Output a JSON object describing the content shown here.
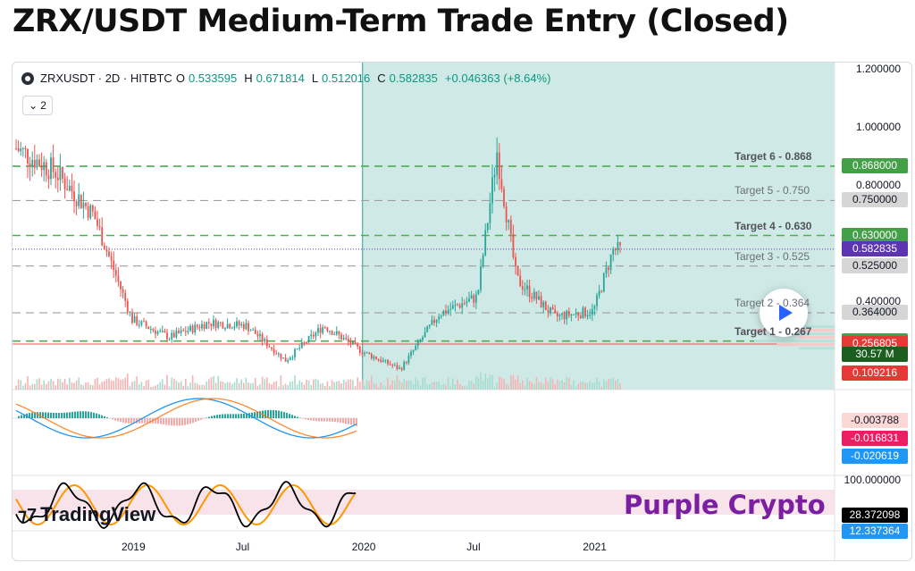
{
  "title": "ZRX/USDT Medium-Term Trade Entry (Closed)",
  "header": {
    "symbol": "ZRXUSDT · 2D · HITBTC",
    "o_label": "O",
    "o_value": "0.533595",
    "h_label": "H",
    "h_value": "0.671814",
    "l_label": "L",
    "l_value": "0.512016",
    "c_label": "C",
    "c_value": "0.582835",
    "change": "+0.046363 (+8.64%)",
    "toggle_label": "2",
    "toggle_icon": "chevron-down-icon"
  },
  "watermarks": {
    "tradingview": "TradingView",
    "brand": "Purple Crypto"
  },
  "colors": {
    "up": "#26a69a",
    "down": "#ef5350",
    "shade": "#cfeae6",
    "target_green": "#4caf50",
    "target_gray": "#9e9e9e",
    "brand_purple": "#7b1fa2",
    "last_price": "#5e35b1"
  },
  "chart_data": [
    {
      "type": "candlestick",
      "title": "",
      "price_axis_ticks": [
        "1.200000",
        "1.000000",
        "0.800000",
        "0.400000"
      ],
      "time_axis_ticks": [
        "2019",
        "Jul",
        "2020",
        "Jul",
        "2021"
      ],
      "ylim": [
        0.1,
        1.2
      ],
      "ohlc_last": {
        "open": 0.533595,
        "high": 0.671814,
        "low": 0.512016,
        "close": 0.582835
      },
      "approx_close_path": {
        "x": [
          "2018-07",
          "2018-09",
          "2018-11",
          "2019-01",
          "2019-03",
          "2019-05",
          "2019-07",
          "2019-09",
          "2019-11",
          "2020-01",
          "2020-03",
          "2020-05",
          "2020-07",
          "2020-08",
          "2020-09",
          "2020-11",
          "2021-01",
          "2021-02"
        ],
        "y": [
          0.93,
          0.85,
          0.7,
          0.34,
          0.28,
          0.33,
          0.32,
          0.2,
          0.32,
          0.23,
          0.17,
          0.36,
          0.42,
          0.92,
          0.48,
          0.35,
          0.37,
          0.58
        ]
      },
      "shaded_range": {
        "from": "2020-01",
        "to": "2021-02"
      },
      "target_lines": [
        {
          "label": "Target 6 - 0.868",
          "value": 0.868,
          "tag": "0.868000",
          "style": "green"
        },
        {
          "label": "Target 5 - 0.750",
          "value": 0.75,
          "tag": "0.750000",
          "style": "gray"
        },
        {
          "label": "Target 4 - 0.630",
          "value": 0.63,
          "tag": "0.630000",
          "style": "green"
        },
        {
          "label": "Target 3 - 0.525",
          "value": 0.525,
          "tag": "0.525000",
          "style": "gray"
        },
        {
          "label": "Target 2 - 0.364",
          "value": 0.364,
          "tag": "0.364000",
          "style": "gray"
        },
        {
          "label": "Target 1 - 0.267",
          "value": 0.267,
          "tag": "0.267000",
          "style": "green"
        }
      ],
      "price_tags": [
        {
          "text": "0.582835",
          "value": 0.582835,
          "kind": "last"
        },
        {
          "text": "0.256805",
          "value": 0.256805,
          "kind": "red"
        },
        {
          "text": "30.57 M",
          "kind": "volume"
        },
        {
          "text": "0.109216",
          "kind": "red"
        }
      ]
    },
    {
      "type": "line",
      "title": "",
      "series": [
        {
          "values": [
            0.02,
            -0.03,
            -0.1,
            0.05,
            -0.02,
            0.01,
            -0.01,
            0.02,
            0.0,
            -0.004
          ]
        }
      ],
      "tags": [
        "-0.003788",
        "-0.016831",
        "-0.020619"
      ]
    },
    {
      "type": "line",
      "title": "",
      "axis_ticks": [
        "100.000000"
      ],
      "series": [
        {
          "values": [
            30,
            80,
            20,
            90,
            40,
            85,
            15,
            60,
            35,
            28
          ]
        }
      ],
      "tags": [
        "28.372098",
        "12.337364"
      ]
    }
  ]
}
